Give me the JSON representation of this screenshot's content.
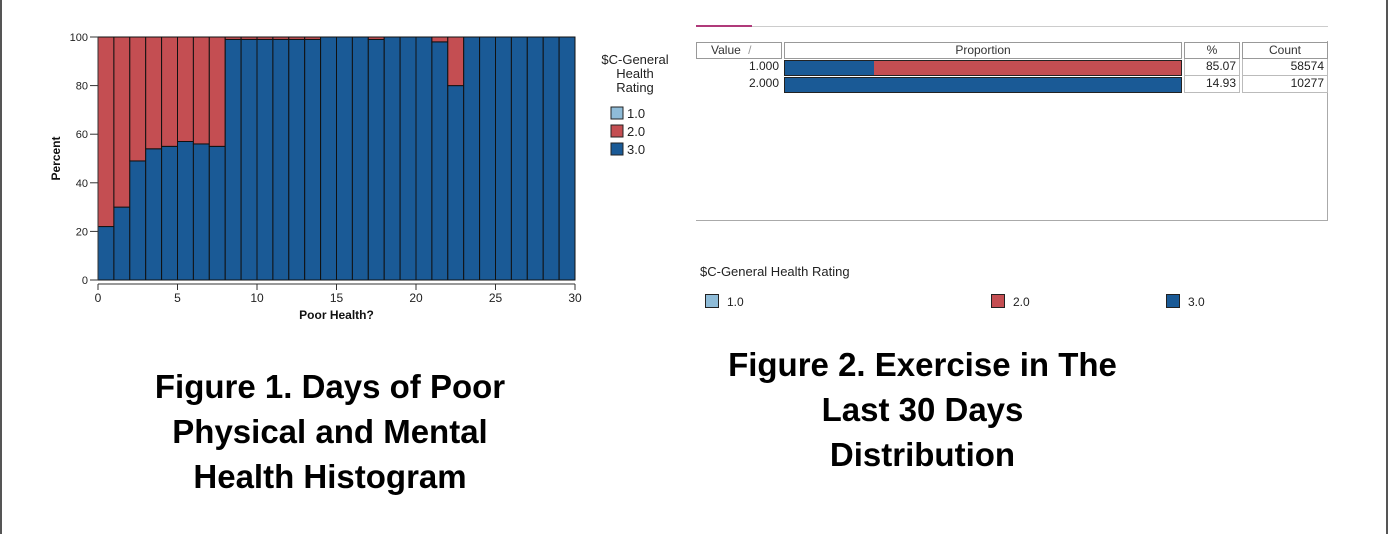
{
  "figure1": {
    "caption_lines": [
      "Figure 1. Days of Poor",
      "Physical and Mental",
      "Health Histogram"
    ],
    "chart_data": {
      "type": "bar",
      "stacked": true,
      "xlabel": "Poor Health?",
      "ylabel": "Percent",
      "ylim": [
        0,
        100
      ],
      "xlim": [
        0,
        30
      ],
      "x_ticks": [
        "0",
        "5",
        "10",
        "15",
        "20",
        "25",
        "30"
      ],
      "y_ticks": [
        "0",
        "20",
        "40",
        "60",
        "80",
        "100"
      ],
      "legend": {
        "title": "$C-General Health Rating",
        "title_lines": [
          "$C-General",
          "Health",
          "Rating"
        ],
        "placement": "right",
        "entries": [
          {
            "label": "1.0",
            "color": "#8fbcd8"
          },
          {
            "label": "2.0",
            "color": "#c44e52"
          },
          {
            "label": "3.0",
            "color": "#1a5a96"
          }
        ]
      },
      "categories": [
        "0",
        "1",
        "2",
        "3",
        "4",
        "5",
        "6",
        "7",
        "8",
        "9",
        "10",
        "11",
        "12",
        "13",
        "14",
        "15",
        "16",
        "17",
        "18",
        "19",
        "20",
        "21",
        "22",
        "23",
        "24",
        "25",
        "26",
        "27",
        "28",
        "29"
      ],
      "series": [
        {
          "name": "3.0",
          "color": "#1a5a96",
          "values": [
            22,
            30,
            49,
            54,
            55,
            57,
            56,
            55,
            99,
            99,
            99,
            99,
            99,
            99,
            100,
            100,
            100,
            99,
            100,
            100,
            100,
            98,
            80,
            100,
            100,
            100,
            100,
            100,
            100,
            100
          ]
        },
        {
          "name": "2.0",
          "color": "#c44e52",
          "values": [
            78,
            70,
            51,
            46,
            45,
            43,
            44,
            45,
            1,
            1,
            1,
            1,
            1,
            1,
            0,
            0,
            0,
            1,
            0,
            0,
            0,
            2,
            20,
            0,
            0,
            0,
            0,
            0,
            0,
            0
          ]
        }
      ],
      "grid": false
    }
  },
  "figure2": {
    "caption_lines": [
      "Figure 2. Exercise in The",
      "Last 30 Days",
      "Distribution"
    ],
    "chart_data": {
      "type": "table",
      "columns": [
        "Value",
        "Proportion",
        "%",
        "Count"
      ],
      "sort_indicator": "/",
      "rows": [
        {
          "value": "1.000",
          "percent": "85.07",
          "count": "58574",
          "proportion_segments": [
            {
              "category": "3.0",
              "fraction": 0.225,
              "color": "#1a5a96"
            },
            {
              "category": "2.0",
              "fraction": 0.775,
              "color": "#c44e52"
            }
          ]
        },
        {
          "value": "2.000",
          "percent": "14.93",
          "count": "10277",
          "proportion_segments": [
            {
              "category": "3.0",
              "fraction": 1.0,
              "color": "#1a5a96"
            }
          ]
        }
      ],
      "legend": {
        "title": "$C-General Health Rating",
        "placement": "bottom",
        "entries": [
          {
            "label": "1.0",
            "color": "#8fbcd8"
          },
          {
            "label": "2.0",
            "color": "#c44e52"
          },
          {
            "label": "3.0",
            "color": "#1a5a96"
          }
        ]
      }
    }
  }
}
